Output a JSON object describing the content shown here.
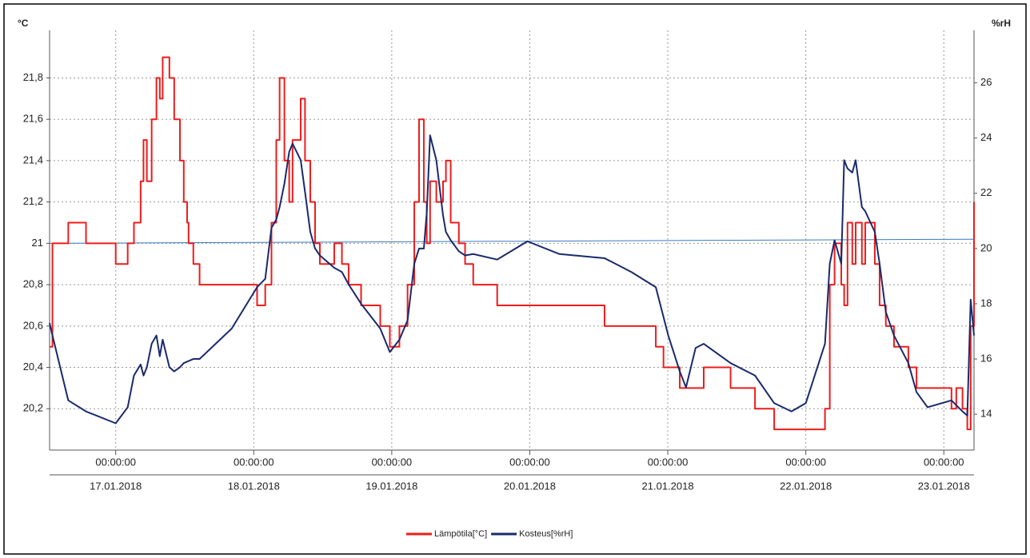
{
  "chart_data": {
    "type": "line",
    "y_unit": "°C",
    "y2_unit": "%rH",
    "xlim": [
      "16.01.2018 12:30",
      "23.01.2018 05:15"
    ],
    "xticks": [
      {
        "value": "17.01.2018 00:00",
        "label": "00:00:00"
      },
      {
        "value": "18.01.2018 00:00",
        "label": "00:00:00"
      },
      {
        "value": "19.01.2018 00:00",
        "label": "00:00:00"
      },
      {
        "value": "20.01.2018 00:00",
        "label": "00:00:00"
      },
      {
        "value": "21.01.2018 00:00",
        "label": "00:00:00"
      },
      {
        "value": "22.01.2018 00:00",
        "label": "00:00:00"
      },
      {
        "value": "23.01.2018 00:00",
        "label": "00:00:00"
      }
    ],
    "xtick_dates": [
      "17.01.2018",
      "18.01.2018",
      "19.01.2018",
      "20.01.2018",
      "21.01.2018",
      "22.01.2018",
      "23.01.2018"
    ],
    "ylim": [
      20.0,
      22.03
    ],
    "yticks": [
      {
        "value": 20.2,
        "label": "20,2"
      },
      {
        "value": 20.4,
        "label": "20,4"
      },
      {
        "value": 20.6,
        "label": "20,6"
      },
      {
        "value": 20.8,
        "label": "20,8"
      },
      21,
      {
        "value": 21.2,
        "label": "21,2"
      },
      {
        "value": 21.4,
        "label": "21,4"
      },
      {
        "value": 21.6,
        "label": "21,6"
      },
      {
        "value": 21.8,
        "label": "21,8"
      }
    ],
    "y2lim": [
      12.7,
      27.9
    ],
    "y2ticks": [
      14,
      16,
      18,
      20,
      22,
      24,
      26
    ],
    "grid": true,
    "legend": "bottom",
    "reference_line": {
      "color": "#3a7abf",
      "x": [
        "16.01.2018 12:30",
        "23.01.2018 05:15"
      ],
      "values": [
        21.0,
        21.02
      ]
    },
    "series": [
      {
        "name": "Lämpötila[°C]",
        "color": "#ee1c1c",
        "step": true,
        "x": [
          "16.01.2018 12:30",
          "16.01.2018 13:00",
          "16.01.2018 15:45",
          "16.01.2018 18:50",
          "17.01.2018 00:00",
          "17.01.2018 02:05",
          "17.01.2018 03:10",
          "17.01.2018 04:20",
          "17.01.2018 04:50",
          "17.01.2018 05:25",
          "17.01.2018 06:15",
          "17.01.2018 07:05",
          "17.01.2018 07:40",
          "17.01.2018 08:10",
          "17.01.2018 09:20",
          "17.01.2018 10:10",
          "17.01.2018 11:10",
          "17.01.2018 11:50",
          "17.01.2018 12:25",
          "17.01.2018 12:40",
          "17.01.2018 13:30",
          "17.01.2018 14:35",
          "18.01.2018 00:35",
          "18.01.2018 02:00",
          "18.01.2018 03:05",
          "18.01.2018 03:55",
          "18.01.2018 04:30",
          "18.01.2018 05:20",
          "18.01.2018 06:10",
          "18.01.2018 06:45",
          "18.01.2018 08:10",
          "18.01.2018 08:55",
          "18.01.2018 09:50",
          "18.01.2018 10:40",
          "18.01.2018 11:30",
          "18.01.2018 14:00",
          "18.01.2018 15:20",
          "18.01.2018 16:30",
          "18.01.2018 18:40",
          "18.01.2018 22:00",
          "18.01.2018 23:40",
          "19.01.2018 01:20",
          "19.01.2018 02:45",
          "19.01.2018 03:55",
          "19.01.2018 04:45",
          "19.01.2018 05:35",
          "19.01.2018 06:05",
          "19.01.2018 06:40",
          "19.01.2018 07:45",
          "19.01.2018 08:55",
          "19.01.2018 09:25",
          "19.01.2018 10:15",
          "19.01.2018 11:40",
          "19.01.2018 12:45",
          "19.01.2018 14:10",
          "19.01.2018 18:20",
          "20.01.2018 13:00",
          "20.01.2018 21:55",
          "20.01.2018 23:15",
          "21.01.2018 02:05",
          "21.01.2018 06:15",
          "21.01.2018 10:55",
          "21.01.2018 15:10",
          "21.01.2018 18:30",
          "22.01.2018 03:20",
          "22.01.2018 04:10",
          "22.01.2018 05:00",
          "22.01.2018 06:10",
          "22.01.2018 06:40",
          "22.01.2018 07:15",
          "22.01.2018 08:05",
          "22.01.2018 08:40",
          "22.01.2018 09:45",
          "22.01.2018 10:20",
          "22.01.2018 12:00",
          "22.01.2018 12:50",
          "22.01.2018 13:55",
          "22.01.2018 15:20",
          "22.01.2018 17:50",
          "22.01.2018 19:15",
          "23.01.2018 01:20",
          "23.01.2018 02:10",
          "23.01.2018 03:15",
          "23.01.2018 04:05",
          "23.01.2018 04:40",
          "23.01.2018 05:15"
        ],
        "values": [
          20.5,
          21.0,
          21.1,
          21.0,
          20.9,
          21.0,
          21.1,
          21.3,
          21.5,
          21.3,
          21.6,
          21.8,
          21.7,
          21.9,
          21.8,
          21.6,
          21.4,
          21.2,
          21.1,
          21.0,
          20.9,
          20.8,
          20.7,
          20.8,
          21.1,
          21.5,
          21.8,
          21.4,
          21.2,
          21.5,
          21.7,
          21.4,
          21.2,
          21.0,
          20.9,
          21.0,
          20.9,
          20.8,
          20.7,
          20.6,
          20.5,
          20.6,
          20.8,
          21.2,
          21.6,
          21.2,
          21.0,
          21.3,
          21.2,
          21.3,
          21.4,
          21.1,
          21.0,
          20.9,
          20.8,
          20.7,
          20.6,
          20.5,
          20.4,
          20.3,
          20.4,
          20.3,
          20.2,
          20.1,
          20.2,
          20.8,
          21.0,
          20.8,
          20.7,
          21.1,
          20.9,
          21.1,
          20.9,
          21.1,
          20.9,
          20.7,
          20.6,
          20.5,
          20.4,
          20.3,
          20.2,
          20.3,
          20.2,
          20.1,
          20.6,
          21.2
        ]
      },
      {
        "name": "Kosteus[%rH]",
        "color": "#1a2a6c",
        "axis": "y2",
        "x": [
          "16.01.2018 12:30",
          "16.01.2018 13:00",
          "16.01.2018 15:45",
          "16.01.2018 18:50",
          "17.01.2018 00:00",
          "17.01.2018 02:05",
          "17.01.2018 03:10",
          "17.01.2018 04:20",
          "17.01.2018 04:50",
          "17.01.2018 05:25",
          "17.01.2018 06:15",
          "17.01.2018 07:05",
          "17.01.2018 07:40",
          "17.01.2018 08:10",
          "17.01.2018 09:20",
          "17.01.2018 10:10",
          "17.01.2018 11:10",
          "17.01.2018 11:50",
          "17.01.2018 13:30",
          "17.01.2018 14:35",
          "17.01.2018 20:10",
          "18.01.2018 00:35",
          "18.01.2018 02:00",
          "18.01.2018 03:05",
          "18.01.2018 03:55",
          "18.01.2018 04:30",
          "18.01.2018 05:20",
          "18.01.2018 06:10",
          "18.01.2018 06:45",
          "18.01.2018 08:10",
          "18.01.2018 08:55",
          "18.01.2018 09:50",
          "18.01.2018 10:40",
          "18.01.2018 11:30",
          "18.01.2018 14:00",
          "18.01.2018 15:20",
          "18.01.2018 16:30",
          "18.01.2018 18:40",
          "18.01.2018 22:00",
          "18.01.2018 23:40",
          "19.01.2018 01:20",
          "19.01.2018 02:45",
          "19.01.2018 03:55",
          "19.01.2018 04:45",
          "19.01.2018 05:35",
          "19.01.2018 06:05",
          "19.01.2018 06:40",
          "19.01.2018 07:45",
          "19.01.2018 08:55",
          "19.01.2018 09:25",
          "19.01.2018 10:15",
          "19.01.2018 11:40",
          "19.01.2018 12:45",
          "19.01.2018 14:10",
          "19.01.2018 18:20",
          "19.01.2018 23:35",
          "20.01.2018 05:10",
          "20.01.2018 13:00",
          "20.01.2018 17:40",
          "20.01.2018 21:55",
          "21.01.2018 00:05",
          "21.01.2018 02:05",
          "21.01.2018 03:10",
          "21.01.2018 04:50",
          "21.01.2018 06:15",
          "21.01.2018 10:55",
          "21.01.2018 15:10",
          "21.01.2018 18:30",
          "21.01.2018 21:30",
          "22.01.2018 00:00",
          "22.01.2018 03:20",
          "22.01.2018 04:10",
          "22.01.2018 05:00",
          "22.01.2018 06:10",
          "22.01.2018 06:40",
          "22.01.2018 07:15",
          "22.01.2018 08:05",
          "22.01.2018 08:40",
          "22.01.2018 09:45",
          "22.01.2018 10:20",
          "22.01.2018 12:00",
          "22.01.2018 12:50",
          "22.01.2018 13:55",
          "22.01.2018 15:20",
          "22.01.2018 17:50",
          "22.01.2018 19:15",
          "22.01.2018 21:10",
          "23.01.2018 01:20",
          "23.01.2018 03:15",
          "23.01.2018 04:05",
          "23.01.2018 04:40",
          "23.01.2018 05:15"
        ],
        "values": [
          17.3,
          16.85,
          14.5,
          14.1,
          13.67,
          14.25,
          15.4,
          15.8,
          15.4,
          15.7,
          16.55,
          16.85,
          16.1,
          16.7,
          15.7,
          15.55,
          15.7,
          15.85,
          16.0,
          16.0,
          17.1,
          18.6,
          18.9,
          20.75,
          21.05,
          21.5,
          22.35,
          23.5,
          23.8,
          23.2,
          22.05,
          20.6,
          20.0,
          19.75,
          19.3,
          19.15,
          18.7,
          18.0,
          17.1,
          16.25,
          16.7,
          17.4,
          19.45,
          20.0,
          20.0,
          21.3,
          24.1,
          23.2,
          21.2,
          20.6,
          20.3,
          19.9,
          19.75,
          19.8,
          19.6,
          20.26,
          19.8,
          19.65,
          19.15,
          18.6,
          16.85,
          15.55,
          14.97,
          16.4,
          16.55,
          15.85,
          15.4,
          14.4,
          14.1,
          14.4,
          16.55,
          19.45,
          20.3,
          19.45,
          23.2,
          22.9,
          22.75,
          23.2,
          21.5,
          21.35,
          20.6,
          19.45,
          17.7,
          16.85,
          15.85,
          14.8,
          14.25,
          14.5,
          14.1,
          13.95,
          18.15,
          16.85
        ]
      }
    ]
  }
}
